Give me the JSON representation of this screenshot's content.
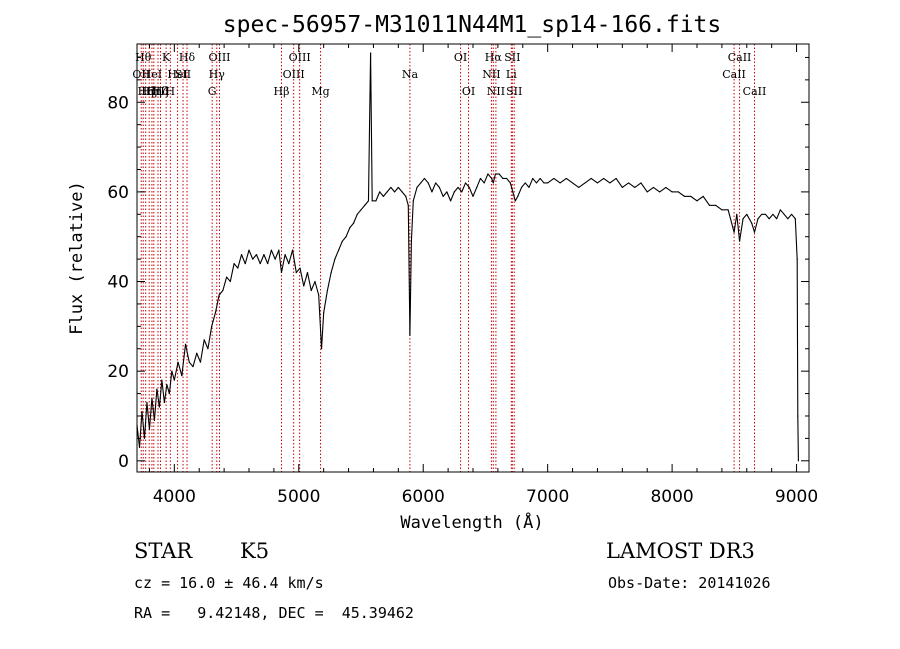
{
  "chart_data": {
    "type": "line",
    "title": "spec-56957-M31011N44M1_sp14-166.fits",
    "xlabel": "Wavelength (Å)",
    "ylabel": "Flux (relative)",
    "xlim": [
      3700,
      9100
    ],
    "ylim": [
      -2.5,
      93
    ],
    "x_ticks": [
      4000,
      5000,
      6000,
      7000,
      8000,
      9000
    ],
    "y_ticks": [
      0,
      20,
      40,
      60,
      80
    ],
    "grid": false,
    "series": [
      {
        "color": "#000000",
        "points": [
          [
            3700,
            8
          ],
          [
            3720,
            3
          ],
          [
            3740,
            11
          ],
          [
            3760,
            5
          ],
          [
            3780,
            13
          ],
          [
            3800,
            7
          ],
          [
            3820,
            14
          ],
          [
            3840,
            9
          ],
          [
            3860,
            16
          ],
          [
            3880,
            12
          ],
          [
            3900,
            18
          ],
          [
            3920,
            13
          ],
          [
            3940,
            17
          ],
          [
            3960,
            15
          ],
          [
            3980,
            20
          ],
          [
            4000,
            18
          ],
          [
            4030,
            22
          ],
          [
            4060,
            19
          ],
          [
            4090,
            26
          ],
          [
            4120,
            22
          ],
          [
            4150,
            21
          ],
          [
            4180,
            24
          ],
          [
            4210,
            22
          ],
          [
            4240,
            27
          ],
          [
            4270,
            25
          ],
          [
            4300,
            30
          ],
          [
            4330,
            33
          ],
          [
            4360,
            37
          ],
          [
            4390,
            38
          ],
          [
            4420,
            41
          ],
          [
            4450,
            40
          ],
          [
            4480,
            44
          ],
          [
            4510,
            43
          ],
          [
            4540,
            46
          ],
          [
            4570,
            44
          ],
          [
            4600,
            47
          ],
          [
            4630,
            45
          ],
          [
            4660,
            46
          ],
          [
            4690,
            44
          ],
          [
            4720,
            46
          ],
          [
            4750,
            44
          ],
          [
            4780,
            47
          ],
          [
            4810,
            45
          ],
          [
            4840,
            47
          ],
          [
            4861,
            42
          ],
          [
            4890,
            46
          ],
          [
            4920,
            44
          ],
          [
            4950,
            47
          ],
          [
            4980,
            42
          ],
          [
            5010,
            43
          ],
          [
            5040,
            39
          ],
          [
            5070,
            42
          ],
          [
            5100,
            38
          ],
          [
            5130,
            40
          ],
          [
            5160,
            37
          ],
          [
            5183,
            25
          ],
          [
            5200,
            33
          ],
          [
            5230,
            38
          ],
          [
            5260,
            42
          ],
          [
            5290,
            45
          ],
          [
            5320,
            47
          ],
          [
            5350,
            49
          ],
          [
            5380,
            50
          ],
          [
            5410,
            52
          ],
          [
            5440,
            53
          ],
          [
            5470,
            55
          ],
          [
            5500,
            56
          ],
          [
            5530,
            57
          ],
          [
            5560,
            58
          ],
          [
            5577,
            91
          ],
          [
            5590,
            58
          ],
          [
            5620,
            58
          ],
          [
            5650,
            60
          ],
          [
            5680,
            59
          ],
          [
            5710,
            60
          ],
          [
            5740,
            61
          ],
          [
            5770,
            60
          ],
          [
            5800,
            61
          ],
          [
            5830,
            60
          ],
          [
            5860,
            59
          ],
          [
            5880,
            57
          ],
          [
            5893,
            28
          ],
          [
            5905,
            49
          ],
          [
            5920,
            58
          ],
          [
            5950,
            61
          ],
          [
            5980,
            62
          ],
          [
            6010,
            63
          ],
          [
            6040,
            62
          ],
          [
            6070,
            60
          ],
          [
            6100,
            62
          ],
          [
            6130,
            61
          ],
          [
            6160,
            59
          ],
          [
            6190,
            60
          ],
          [
            6220,
            58
          ],
          [
            6250,
            60
          ],
          [
            6280,
            61
          ],
          [
            6310,
            60
          ],
          [
            6340,
            62
          ],
          [
            6370,
            61
          ],
          [
            6400,
            59
          ],
          [
            6430,
            61
          ],
          [
            6460,
            63
          ],
          [
            6490,
            62
          ],
          [
            6520,
            64
          ],
          [
            6550,
            63
          ],
          [
            6563,
            62
          ],
          [
            6580,
            64
          ],
          [
            6610,
            64
          ],
          [
            6640,
            63
          ],
          [
            6670,
            63
          ],
          [
            6700,
            62
          ],
          [
            6720,
            60
          ],
          [
            6740,
            58
          ],
          [
            6760,
            59
          ],
          [
            6790,
            61
          ],
          [
            6820,
            62
          ],
          [
            6850,
            61
          ],
          [
            6880,
            63
          ],
          [
            6910,
            62
          ],
          [
            6940,
            63
          ],
          [
            6970,
            62
          ],
          [
            7000,
            62
          ],
          [
            7050,
            63
          ],
          [
            7100,
            62
          ],
          [
            7150,
            63
          ],
          [
            7200,
            62
          ],
          [
            7250,
            61
          ],
          [
            7300,
            62
          ],
          [
            7350,
            63
          ],
          [
            7400,
            62
          ],
          [
            7450,
            63
          ],
          [
            7500,
            62
          ],
          [
            7550,
            63
          ],
          [
            7600,
            61
          ],
          [
            7650,
            62
          ],
          [
            7700,
            61
          ],
          [
            7750,
            62
          ],
          [
            7800,
            60
          ],
          [
            7850,
            61
          ],
          [
            7900,
            60
          ],
          [
            7950,
            61
          ],
          [
            8000,
            60
          ],
          [
            8050,
            60
          ],
          [
            8100,
            59
          ],
          [
            8150,
            59
          ],
          [
            8200,
            58
          ],
          [
            8250,
            59
          ],
          [
            8300,
            57
          ],
          [
            8350,
            57
          ],
          [
            8400,
            56
          ],
          [
            8450,
            56
          ],
          [
            8498,
            51
          ],
          [
            8520,
            55
          ],
          [
            8542,
            49
          ],
          [
            8570,
            54
          ],
          [
            8600,
            55
          ],
          [
            8640,
            53
          ],
          [
            8662,
            51
          ],
          [
            8690,
            54
          ],
          [
            8720,
            55
          ],
          [
            8750,
            55
          ],
          [
            8780,
            54
          ],
          [
            8810,
            55
          ],
          [
            8840,
            54
          ],
          [
            8870,
            56
          ],
          [
            8900,
            55
          ],
          [
            8930,
            54
          ],
          [
            8960,
            55
          ],
          [
            8990,
            54
          ],
          [
            9005,
            45
          ],
          [
            9010,
            10
          ],
          [
            9015,
            0
          ]
        ]
      }
    ],
    "lines": [
      {
        "wl": 3734,
        "label": "OII",
        "row": 1
      },
      {
        "wl": 3750,
        "label": "Hθ",
        "row": 0
      },
      {
        "wl": 3770,
        "label": "Hη",
        "row": 2
      },
      {
        "wl": 3798,
        "label": "Hζ",
        "row": 2
      },
      {
        "wl": 3820,
        "label": "HeI",
        "row": 1
      },
      {
        "wl": 3835,
        "label": "Hη",
        "row": 2
      },
      {
        "wl": 3869,
        "label": "OIII",
        "row": 2
      },
      {
        "wl": 3889,
        "label": "Hζ",
        "row": 2
      },
      {
        "wl": 3934,
        "label": "K",
        "row": 0
      },
      {
        "wl": 3968,
        "label": "H",
        "row": 2
      },
      {
        "wl": 4026,
        "label": "HeI",
        "row": 1
      },
      {
        "wl": 4070,
        "label": "SII",
        "row": 1
      },
      {
        "wl": 4102,
        "label": "Hδ",
        "row": 0
      },
      {
        "wl": 4304,
        "label": "G",
        "row": 2
      },
      {
        "wl": 4341,
        "label": "Hγ",
        "row": 1
      },
      {
        "wl": 4363,
        "label": "OIII",
        "row": 0
      },
      {
        "wl": 4861,
        "label": "Hβ",
        "row": 2
      },
      {
        "wl": 4959,
        "label": "OIII",
        "row": 1
      },
      {
        "wl": 5007,
        "label": "OIII",
        "row": 0
      },
      {
        "wl": 5175,
        "label": "Mg",
        "row": 2
      },
      {
        "wl": 5893,
        "label": "Na",
        "row": 1
      },
      {
        "wl": 6300,
        "label": "OI",
        "row": 0
      },
      {
        "wl": 6364,
        "label": "OI",
        "row": 2
      },
      {
        "wl": 6548,
        "label": "NII",
        "row": 1
      },
      {
        "wl": 6563,
        "label": "Hα",
        "row": 0
      },
      {
        "wl": 6584,
        "label": "NII",
        "row": 2
      },
      {
        "wl": 6708,
        "label": "Li",
        "row": 1
      },
      {
        "wl": 6716,
        "label": "SII",
        "row": 0
      },
      {
        "wl": 6731,
        "label": "SII",
        "row": 2
      },
      {
        "wl": 8498,
        "label": "CaII",
        "row": 1
      },
      {
        "wl": 8542,
        "label": "CaII",
        "row": 0
      },
      {
        "wl": 8662,
        "label": "CaII",
        "row": 2
      }
    ]
  },
  "info": {
    "class": "STAR",
    "subclass": "K5",
    "survey": "LAMOST DR3",
    "cz": "cz = 16.0 ± 46.4 km/s",
    "obs_date": "Obs-Date: 20141026",
    "radec": "RA =   9.42148, DEC =  45.39462"
  }
}
